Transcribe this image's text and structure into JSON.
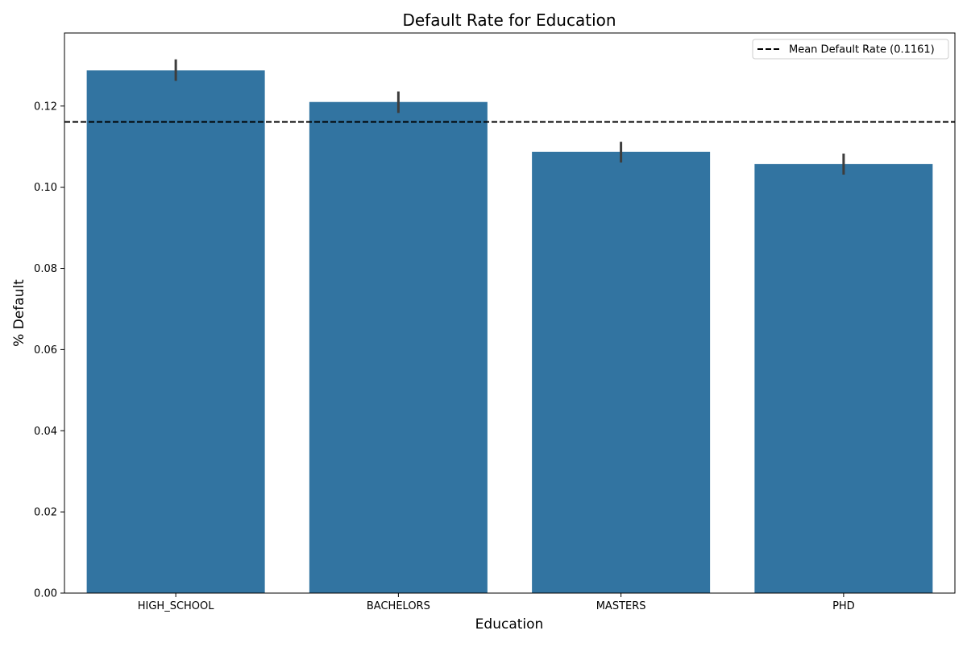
{
  "chart_data": {
    "type": "bar",
    "title": "Default Rate for Education",
    "xlabel": "Education",
    "ylabel": "% Default",
    "categories": [
      "HIGH_SCHOOL",
      "BACHELORS",
      "MASTERS",
      "PHD"
    ],
    "values": [
      0.1288,
      0.121,
      0.1087,
      0.1057
    ],
    "error_bars": [
      {
        "low": 0.1262,
        "high": 0.1315
      },
      {
        "low": 0.1183,
        "high": 0.1236
      },
      {
        "low": 0.1061,
        "high": 0.1112
      },
      {
        "low": 0.1031,
        "high": 0.1083
      }
    ],
    "ylim": [
      0,
      0.138
    ],
    "yticks": [
      0.0,
      0.02,
      0.04,
      0.06,
      0.08,
      0.1,
      0.12
    ],
    "ytick_labels": [
      "0.00",
      "0.02",
      "0.04",
      "0.06",
      "0.08",
      "0.10",
      "0.12"
    ],
    "reference_line": {
      "value": 0.1161,
      "style": "dashed",
      "color": "#000000",
      "label": "Mean Default Rate (0.1161)"
    },
    "legend_position": "top-right",
    "grid": false,
    "colors": {
      "bar": "#3274a1",
      "error_bar": "#3d3d3d",
      "axes": "#000000"
    }
  }
}
